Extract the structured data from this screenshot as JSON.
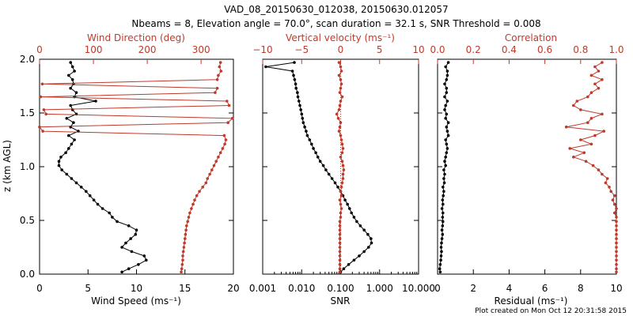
{
  "title_line1": "VAD_08_20150630_012038, 20150630.012057",
  "title_line2": "Nbeams = 8, Elevation angle = 70.0°, scan duration = 32.1 s, SNR Threshold = 0.008",
  "credit": "Plot created on Mon Oct 12 20:31:58 2015",
  "colors": {
    "primary": "#000000",
    "secondary": "#c0392b"
  },
  "chart_data": [
    {
      "type": "line",
      "panel": "wind",
      "ylabel": "z (km AGL)",
      "ylim": [
        0,
        2.0
      ],
      "yticks": [
        "0.0",
        "0.5",
        "1.0",
        "1.5",
        "2.0"
      ],
      "xlabel": "Wind Speed (ms⁻¹)",
      "xlim": [
        0,
        20
      ],
      "xticks": [
        "0",
        "5",
        "10",
        "15",
        "20"
      ],
      "x2label": "Wind Direction (deg)",
      "x2lim": [
        0,
        360
      ],
      "x2ticks": [
        "0",
        "100",
        "200",
        "300"
      ],
      "series": [
        {
          "name": "Wind Speed",
          "axis": "bottom",
          "color": "#000000",
          "z": [
            0.02,
            0.05,
            0.09,
            0.13,
            0.17,
            0.21,
            0.25,
            0.29,
            0.33,
            0.37,
            0.41,
            0.45,
            0.49,
            0.53,
            0.57,
            0.61,
            0.65,
            0.69,
            0.73,
            0.77,
            0.81,
            0.85,
            0.89,
            0.93,
            0.97,
            1.01,
            1.05,
            1.09,
            1.13,
            1.17,
            1.21,
            1.25,
            1.29,
            1.33,
            1.37,
            1.41,
            1.45,
            1.49,
            1.53,
            1.57,
            1.61,
            1.65,
            1.69,
            1.73,
            1.77,
            1.81,
            1.85,
            1.89,
            1.93,
            1.97
          ],
          "values": [
            8.5,
            9.2,
            10.2,
            11.0,
            10.8,
            9.5,
            8.5,
            8.9,
            9.4,
            9.9,
            10.0,
            9.2,
            8.0,
            7.5,
            7.2,
            6.5,
            6.0,
            5.6,
            5.2,
            4.8,
            4.3,
            3.8,
            3.3,
            2.8,
            2.3,
            2.0,
            2.0,
            2.2,
            2.7,
            3.0,
            3.3,
            3.6,
            3.0,
            4.0,
            3.2,
            3.5,
            2.8,
            3.8,
            3.4,
            3.2,
            5.8,
            3.6,
            3.8,
            3.2,
            3.5,
            3.4,
            3.0,
            3.6,
            3.4,
            3.2
          ]
        },
        {
          "name": "Wind Direction",
          "axis": "top",
          "color": "#c0392b",
          "z": [
            0.02,
            0.05,
            0.09,
            0.13,
            0.17,
            0.21,
            0.25,
            0.29,
            0.33,
            0.37,
            0.41,
            0.45,
            0.49,
            0.53,
            0.57,
            0.61,
            0.65,
            0.69,
            0.73,
            0.77,
            0.81,
            0.85,
            0.89,
            0.93,
            0.97,
            1.01,
            1.05,
            1.09,
            1.13,
            1.17,
            1.21,
            1.25,
            1.29,
            1.33,
            1.37,
            1.41,
            1.45,
            1.49,
            1.53,
            1.57,
            1.61,
            1.65,
            1.69,
            1.73,
            1.77,
            1.81,
            1.85,
            1.89,
            1.93,
            1.97
          ],
          "values": [
            263,
            264,
            265,
            266,
            266,
            267,
            268,
            269,
            270,
            271,
            272,
            273,
            275,
            277,
            279,
            282,
            285,
            288,
            292,
            297,
            303,
            309,
            312,
            316,
            320,
            324,
            328,
            332,
            336,
            340,
            344,
            346,
            343,
            6,
            0,
            350,
            358,
            12,
            8,
            352,
            348,
            2,
            326,
            330,
            5,
            330,
            332,
            337,
            334,
            336
          ]
        }
      ]
    },
    {
      "type": "line",
      "panel": "snr",
      "xlabel": "SNR",
      "xscale": "log",
      "xlim": [
        0.001,
        10
      ],
      "xticks": [
        "0.001",
        "0.010",
        "0.100",
        "1.000",
        "10.000"
      ],
      "x2label": "Vertical velocity (ms⁻¹)",
      "x2lim": [
        -10,
        10
      ],
      "x2ticks": [
        "−10",
        "−5",
        "0",
        "5",
        "10"
      ],
      "ylim": [
        0,
        2.0
      ],
      "series": [
        {
          "name": "SNR",
          "axis": "bottom",
          "color": "#000000",
          "z": [
            0.02,
            0.05,
            0.09,
            0.13,
            0.17,
            0.21,
            0.25,
            0.29,
            0.33,
            0.37,
            0.41,
            0.45,
            0.49,
            0.53,
            0.57,
            0.61,
            0.65,
            0.69,
            0.73,
            0.77,
            0.81,
            0.85,
            0.89,
            0.93,
            0.97,
            1.01,
            1.05,
            1.09,
            1.13,
            1.17,
            1.21,
            1.25,
            1.29,
            1.33,
            1.37,
            1.41,
            1.45,
            1.49,
            1.53,
            1.57,
            1.61,
            1.65,
            1.69,
            1.73,
            1.77,
            1.81,
            1.85,
            1.89,
            1.93,
            1.97
          ],
          "values": [
            0.1,
            0.12,
            0.16,
            0.22,
            0.3,
            0.4,
            0.52,
            0.62,
            0.6,
            0.5,
            0.4,
            0.32,
            0.26,
            0.22,
            0.19,
            0.17,
            0.15,
            0.13,
            0.115,
            0.1,
            0.085,
            0.072,
            0.06,
            0.05,
            0.042,
            0.036,
            0.03,
            0.026,
            0.023,
            0.02,
            0.018,
            0.016,
            0.014,
            0.013,
            0.012,
            0.011,
            0.0105,
            0.01,
            0.0095,
            0.009,
            0.0085,
            0.008,
            0.0078,
            0.0072,
            0.007,
            0.0066,
            0.0062,
            0.0058,
            0.0012,
            0.0065
          ]
        },
        {
          "name": "Vertical velocity",
          "axis": "top",
          "color": "#c0392b",
          "z": [
            0.02,
            0.05,
            0.09,
            0.13,
            0.17,
            0.21,
            0.25,
            0.29,
            0.33,
            0.37,
            0.41,
            0.45,
            0.49,
            0.53,
            0.57,
            0.61,
            0.65,
            0.69,
            0.73,
            0.77,
            0.81,
            0.85,
            0.89,
            0.93,
            0.97,
            1.01,
            1.05,
            1.09,
            1.13,
            1.17,
            1.21,
            1.25,
            1.29,
            1.33,
            1.37,
            1.41,
            1.45,
            1.49,
            1.53,
            1.57,
            1.61,
            1.65,
            1.69,
            1.73,
            1.77,
            1.81,
            1.85,
            1.89,
            1.93,
            1.97
          ],
          "values": [
            -0.1,
            -0.1,
            -0.1,
            -0.1,
            -0.1,
            -0.1,
            -0.1,
            -0.1,
            -0.1,
            -0.1,
            -0.1,
            -0.1,
            -0.1,
            0.0,
            0.0,
            0.1,
            0.0,
            -0.1,
            0.1,
            0.0,
            0.1,
            0.2,
            0.3,
            0.3,
            0.4,
            0.3,
            0.2,
            0.0,
            0.2,
            0.3,
            0.2,
            0.1,
            0.0,
            -0.2,
            -0.1,
            0.0,
            -0.3,
            -0.5,
            -0.2,
            -0.1,
            0.0,
            0.2,
            -0.1,
            0.0,
            0.1,
            0.0,
            -0.2,
            0.1,
            0.0,
            -0.2
          ]
        }
      ]
    },
    {
      "type": "line",
      "panel": "residual",
      "xlabel": "Residual (ms⁻¹)",
      "xlim": [
        0,
        10
      ],
      "xticks": [
        "0",
        "2",
        "4",
        "6",
        "8",
        "10"
      ],
      "x2label": "Correlation",
      "x2lim": [
        0,
        1
      ],
      "x2ticks": [
        "0.0",
        "0.2",
        "0.4",
        "0.6",
        "0.8",
        "1.0"
      ],
      "ylim": [
        0,
        2.0
      ],
      "series": [
        {
          "name": "Residual",
          "axis": "bottom",
          "color": "#000000",
          "z": [
            0.02,
            0.05,
            0.09,
            0.13,
            0.17,
            0.21,
            0.25,
            0.29,
            0.33,
            0.37,
            0.41,
            0.45,
            0.49,
            0.53,
            0.57,
            0.61,
            0.65,
            0.69,
            0.73,
            0.77,
            0.81,
            0.85,
            0.89,
            0.93,
            0.97,
            1.01,
            1.05,
            1.09,
            1.13,
            1.17,
            1.21,
            1.25,
            1.29,
            1.33,
            1.37,
            1.41,
            1.45,
            1.49,
            1.53,
            1.57,
            1.61,
            1.65,
            1.69,
            1.73,
            1.77,
            1.81,
            1.85,
            1.89,
            1.93,
            1.97
          ],
          "values": [
            0.15,
            0.12,
            0.15,
            0.18,
            0.2,
            0.22,
            0.2,
            0.22,
            0.25,
            0.28,
            0.25,
            0.28,
            0.3,
            0.28,
            0.3,
            0.25,
            0.3,
            0.28,
            0.32,
            0.35,
            0.3,
            0.38,
            0.35,
            0.4,
            0.35,
            0.45,
            0.4,
            0.45,
            0.5,
            0.55,
            0.5,
            0.45,
            0.6,
            0.55,
            0.5,
            0.6,
            0.45,
            0.5,
            0.4,
            0.45,
            0.55,
            0.4,
            0.5,
            0.5,
            0.4,
            0.5,
            0.55,
            0.55,
            0.45,
            0.6
          ]
        },
        {
          "name": "Correlation",
          "axis": "top",
          "color": "#c0392b",
          "z": [
            0.02,
            0.05,
            0.09,
            0.13,
            0.17,
            0.21,
            0.25,
            0.29,
            0.33,
            0.37,
            0.41,
            0.45,
            0.49,
            0.53,
            0.57,
            0.61,
            0.65,
            0.69,
            0.73,
            0.77,
            0.81,
            0.85,
            0.89,
            0.93,
            0.97,
            1.01,
            1.05,
            1.09,
            1.13,
            1.17,
            1.21,
            1.25,
            1.29,
            1.33,
            1.37,
            1.41,
            1.45,
            1.49,
            1.53,
            1.57,
            1.61,
            1.65,
            1.69,
            1.73,
            1.77,
            1.81,
            1.85,
            1.89,
            1.93,
            1.97
          ],
          "values": [
            1.0,
            1.0,
            1.0,
            1.0,
            1.0,
            1.0,
            1.0,
            1.0,
            1.0,
            1.0,
            1.0,
            1.0,
            1.0,
            1.0,
            0.99,
            1.0,
            0.99,
            0.98,
            0.99,
            0.97,
            0.96,
            0.94,
            0.95,
            0.92,
            0.9,
            0.87,
            0.83,
            0.76,
            0.82,
            0.74,
            0.86,
            0.8,
            0.88,
            0.93,
            0.72,
            0.84,
            0.86,
            0.92,
            0.8,
            0.76,
            0.78,
            0.84,
            0.86,
            0.9,
            0.88,
            0.92,
            0.86,
            0.9,
            0.88,
            0.92
          ]
        }
      ]
    }
  ]
}
